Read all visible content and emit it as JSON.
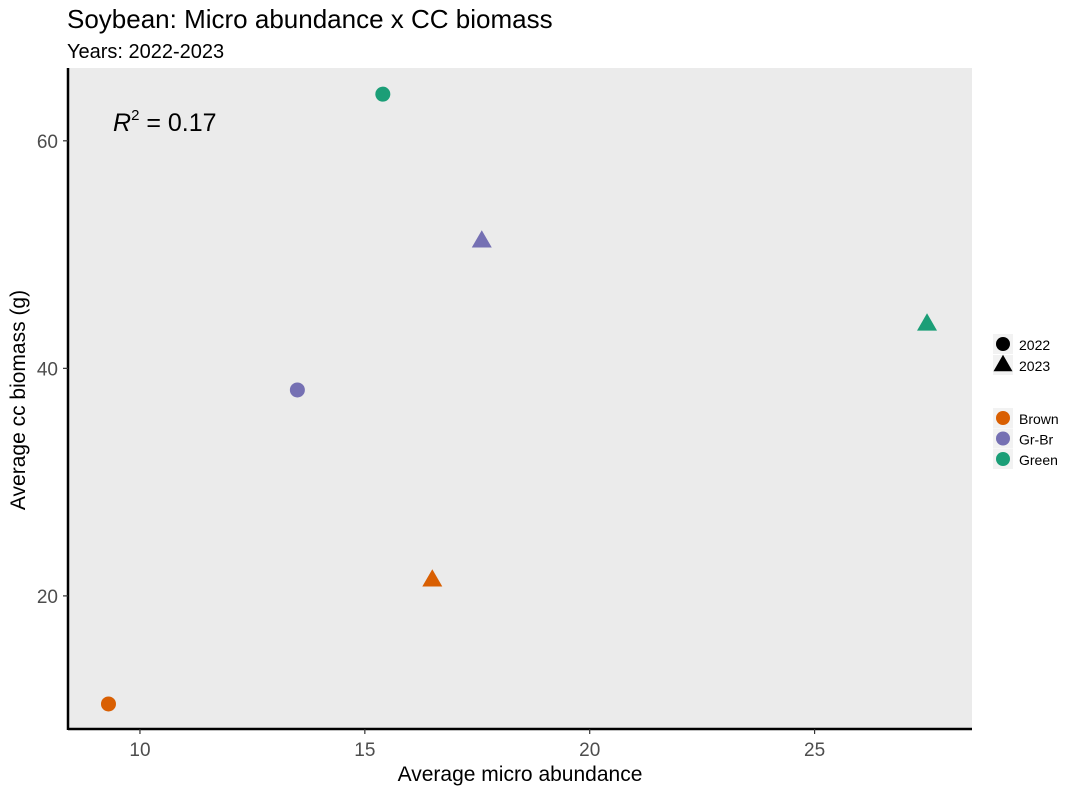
{
  "chart_data": {
    "type": "scatter",
    "title": "Soybean: Micro abundance x CC biomass",
    "subtitle": "Years: 2022-2023",
    "xlabel": "Average micro abundance",
    "ylabel": "Average cc biomass (g)",
    "xlim": [
      8.4,
      28.5
    ],
    "ylim": [
      8.3,
      66.4
    ],
    "x_ticks": [
      10,
      15,
      20,
      25
    ],
    "y_ticks": [
      20,
      40,
      60
    ],
    "grid": false,
    "panel_background": "#EBEBEB",
    "annotation": {
      "symbol": "R",
      "superscript": "2",
      "text": " = 0.17",
      "value": 0.17,
      "position": "top-left"
    },
    "legend_placement": "right",
    "shape_legend": [
      {
        "label": "2022",
        "shape": "circle"
      },
      {
        "label": "2023",
        "shape": "triangle"
      }
    ],
    "color_legend": [
      {
        "label": "Brown",
        "color": "#D95F02"
      },
      {
        "label": "Gr-Br",
        "color": "#7570B3"
      },
      {
        "label": "Green",
        "color": "#1B9E77"
      }
    ],
    "points": [
      {
        "x": 9.3,
        "y": 10.5,
        "group": "Brown",
        "year": "2022"
      },
      {
        "x": 13.5,
        "y": 38.1,
        "group": "Gr-Br",
        "year": "2022"
      },
      {
        "x": 15.4,
        "y": 64.1,
        "group": "Green",
        "year": "2022"
      },
      {
        "x": 16.5,
        "y": 21.4,
        "group": "Brown",
        "year": "2023"
      },
      {
        "x": 17.6,
        "y": 51.2,
        "group": "Gr-Br",
        "year": "2023"
      },
      {
        "x": 27.5,
        "y": 43.9,
        "group": "Green",
        "year": "2023"
      }
    ]
  }
}
